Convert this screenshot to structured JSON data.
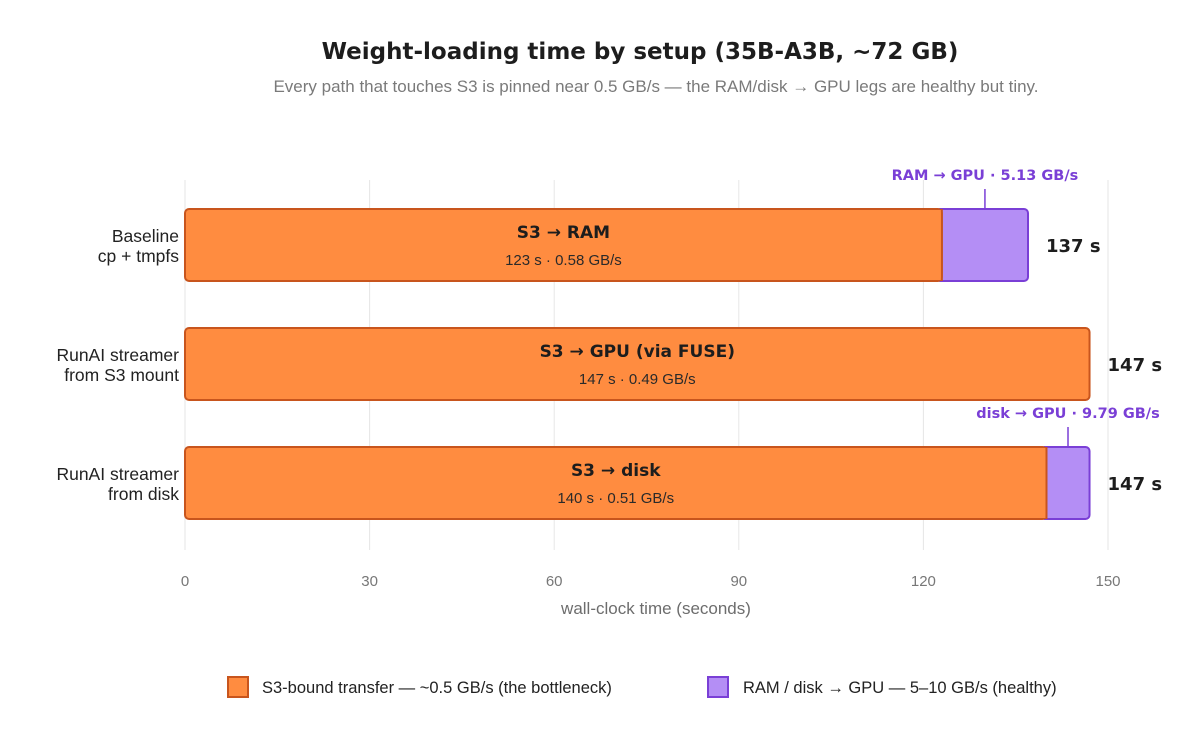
{
  "colors": {
    "s3_fill": "#ff8c40",
    "s3_stroke": "#c8551d",
    "gpu_fill": "#b48ef5",
    "gpu_stroke": "#7a3fd6",
    "grid": "#e6e6e6",
    "annotation": "#7a3fd6"
  },
  "chart_data": {
    "type": "bar",
    "orientation": "horizontal",
    "stacked": true,
    "title": "Weight-loading time by setup (35B-A3B, ~72 GB)",
    "subtitle": "Every path that touches S3 is pinned near 0.5 GB/s — the RAM/disk → GPU legs are healthy but tiny.",
    "xlabel": "wall-clock time (seconds)",
    "xlim": [
      0,
      150
    ],
    "xticks": [
      0,
      30,
      60,
      90,
      120,
      150
    ],
    "grid": true,
    "legend_position": "bottom",
    "categories": [
      [
        "Baseline",
        "cp + tmpfs"
      ],
      [
        "RunAI streamer",
        "from S3 mount"
      ],
      [
        "RunAI streamer",
        "from disk"
      ]
    ],
    "series": [
      {
        "name": "S3-bound transfer — ~0.5 GB/s (the bottleneck)",
        "values": [
          123,
          147,
          140
        ],
        "segment_titles": [
          "S3 → RAM",
          "S3 → GPU (via FUSE)",
          "S3 → disk"
        ],
        "segment_subtitles": [
          "123 s · 0.58 GB/s",
          "147 s · 0.49 GB/s",
          "140 s · 0.51 GB/s"
        ]
      },
      {
        "name": "RAM / disk → GPU — 5–10 GB/s (healthy)",
        "values": [
          14,
          0,
          7
        ],
        "annotations": [
          "RAM → GPU · 5.13 GB/s",
          "",
          "disk → GPU · 9.79 GB/s"
        ]
      }
    ],
    "totals": [
      137,
      147,
      147
    ],
    "total_labels": [
      "137 s",
      "147 s",
      "147 s"
    ]
  }
}
